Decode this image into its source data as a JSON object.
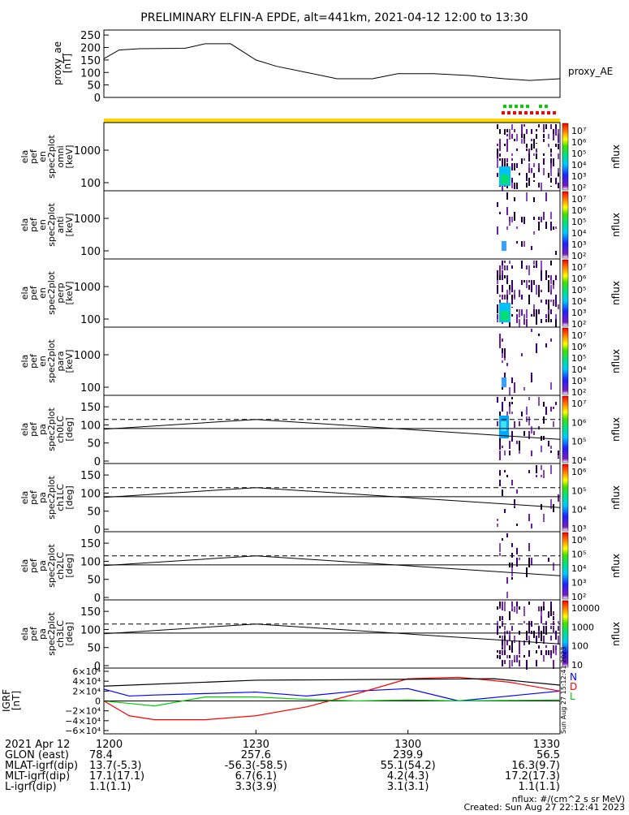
{
  "title": "PRELIMINARY ELFIN-A EPDE, alt=441km, 2021-04-12 12:00 to 13:30",
  "ae_panel": {
    "ylabel": [
      "proxy_ae",
      "[nT]"
    ],
    "right_label": "proxy_AE",
    "ticks": [
      "250",
      "200",
      "150",
      "100",
      "50",
      "0"
    ],
    "tick_values": [
      250,
      200,
      150,
      100,
      50,
      0
    ],
    "ylim": [
      0,
      270
    ]
  },
  "spec_panels": [
    {
      "ylabel": [
        "ela",
        "pef",
        "en",
        "spec2plot",
        "omni",
        "[keV]"
      ],
      "ticks": [
        "1000",
        "100"
      ],
      "colorbar": {
        "label": "nflux",
        "ticks": [
          "10⁷",
          "10⁶",
          "10⁵",
          "10⁴",
          "10³",
          "10²"
        ]
      }
    },
    {
      "ylabel": [
        "ela",
        "pef",
        "en",
        "spec2plot",
        "anti",
        "[keV]"
      ],
      "ticks": [
        "1000",
        "100"
      ],
      "colorbar": {
        "label": "nflux",
        "ticks": [
          "10⁷",
          "10⁶",
          "10⁵",
          "10⁴",
          "10³",
          "10²"
        ]
      }
    },
    {
      "ylabel": [
        "ela",
        "pef",
        "en",
        "spec2plot",
        "perp",
        "[keV]"
      ],
      "ticks": [
        "1000",
        "100"
      ],
      "colorbar": {
        "label": "nflux",
        "ticks": [
          "10⁷",
          "10⁶",
          "10⁵",
          "10⁴",
          "10³",
          "10²"
        ]
      }
    },
    {
      "ylabel": [
        "ela",
        "pef",
        "en",
        "spec2plot",
        "para",
        "[keV]"
      ],
      "ticks": [
        "1000",
        "100"
      ],
      "colorbar": {
        "label": "nflux",
        "ticks": [
          "10⁷",
          "10⁶",
          "10⁵",
          "10⁴",
          "10³",
          "10²"
        ]
      }
    },
    {
      "ylabel": [
        "ela",
        "pef",
        "pa",
        "spec2plot",
        "ch0LC",
        "[deg]"
      ],
      "ticks": [
        "150",
        "100",
        "50",
        "0"
      ],
      "colorbar": {
        "label": "nflux",
        "ticks": [
          "10⁷",
          "10⁶",
          "10⁵",
          "10⁴"
        ]
      }
    },
    {
      "ylabel": [
        "ela",
        "pef",
        "pa",
        "spec2plot",
        "ch1LC",
        "[deg]"
      ],
      "ticks": [
        "150",
        "100",
        "50",
        "0"
      ],
      "colorbar": {
        "label": "nflux",
        "ticks": [
          "10⁶",
          "10⁵",
          "10⁴",
          "10³"
        ]
      }
    },
    {
      "ylabel": [
        "ela",
        "pef",
        "pa",
        "spec2plot",
        "ch2LC",
        "[deg]"
      ],
      "ticks": [
        "150",
        "100",
        "50",
        "0"
      ],
      "colorbar": {
        "label": "nflux",
        "ticks": [
          "10⁶",
          "10⁵",
          "10⁴",
          "10³",
          "10²"
        ]
      }
    },
    {
      "ylabel": [
        "ela",
        "pef",
        "pa",
        "spec2plot",
        "ch3LC",
        "[deg]"
      ],
      "ticks": [
        "150",
        "100",
        "50",
        "0"
      ],
      "colorbar": {
        "label": "nflux",
        "ticks": [
          "10000",
          "1000",
          "100",
          "10"
        ]
      }
    }
  ],
  "igrf_panel": {
    "ylabel": [
      "IGRF",
      "[nT]"
    ],
    "legend": [
      "N",
      "D",
      "L"
    ],
    "legend_colors": [
      "#0000ff",
      "#ff0000",
      "#00cc00"
    ],
    "stamp": "Sun Aug 27 15:12:41 2023",
    "ticks": [
      "6×10⁴",
      "4×10⁴",
      "2×10⁴",
      "0",
      "−2×10⁴",
      "−4×10⁴",
      "−6×10⁴"
    ]
  },
  "footer": {
    "row_labels": [
      "2021 Apr 12",
      "GLON (east)",
      "MLAT-igrf(dip)",
      "MLT-igrf(dip)",
      "L-igrf(dip)"
    ],
    "columns": [
      {
        "time": "1200",
        "glon": "78.4",
        "mlat": "13.7(-5.3)",
        "mlt": "17.1(17.1)",
        "l": "1.1(1.1)"
      },
      {
        "time": "1230",
        "glon": "257.6",
        "mlat": "-56.3(-58.5)",
        "mlt": "6.7(6.1)",
        "l": "3.3(3.9)"
      },
      {
        "time": "1300",
        "glon": "239.9",
        "mlat": "55.1(54.2)",
        "mlt": "4.2(4.3)",
        "l": "3.1(3.1)"
      },
      {
        "time": "1330",
        "glon": "56.5",
        "mlat": "16.3(9.7)",
        "mlt": "17.2(17.3)",
        "l": "1.1(1.1)"
      }
    ],
    "units_note": "nflux: #/(cm^2 s sr MeV)",
    "created": "Created: Sun Aug 27 22:12:41 2023"
  },
  "chart_data": {
    "type": "line",
    "title": "PRELIMINARY ELFIN-A EPDE, alt=441km, 2021-04-12 12:00 to 13:30",
    "x_ticks": [
      "1200",
      "1230",
      "1300",
      "1330"
    ],
    "series": [
      {
        "name": "proxy_AE",
        "x": [
          0,
          3,
          7,
          16,
          20,
          25,
          30,
          34,
          40,
          46,
          50,
          53,
          58,
          65,
          72,
          79,
          84,
          90
        ],
        "values": [
          155,
          190,
          195,
          197,
          215,
          215,
          150,
          125,
          100,
          75,
          75,
          75,
          95,
          95,
          88,
          75,
          68,
          75
        ]
      },
      {
        "name": "N",
        "x": [
          0,
          5,
          10,
          20,
          30,
          40,
          50,
          60,
          70,
          80,
          90
        ],
        "values": [
          24000,
          10000,
          12000,
          15000,
          18000,
          10000,
          20000,
          25000,
          0,
          10000,
          20000
        ]
      },
      {
        "name": "D",
        "x": [
          0,
          5,
          10,
          20,
          30,
          40,
          50,
          60,
          70,
          80,
          90
        ],
        "values": [
          0,
          -30000,
          -38000,
          -38000,
          -30000,
          -12000,
          15000,
          45000,
          48000,
          38000,
          20000
        ]
      },
      {
        "name": "L",
        "x": [
          0,
          5,
          10,
          20,
          30,
          40,
          50,
          60,
          70,
          80,
          90
        ],
        "values": [
          0,
          -5000,
          -10000,
          8000,
          8000,
          3000,
          0,
          2000,
          0,
          1000,
          2000
        ]
      },
      {
        "name": "",
        "x": [
          0,
          30,
          77,
          90
        ],
        "values": [
          30000,
          42000,
          45000,
          32000
        ]
      }
    ],
    "pitch_angle_reference": {
      "solid_x": [
        0,
        30,
        90
      ],
      "solid": [
        88,
        115,
        60
      ],
      "dashed": 115
    }
  }
}
